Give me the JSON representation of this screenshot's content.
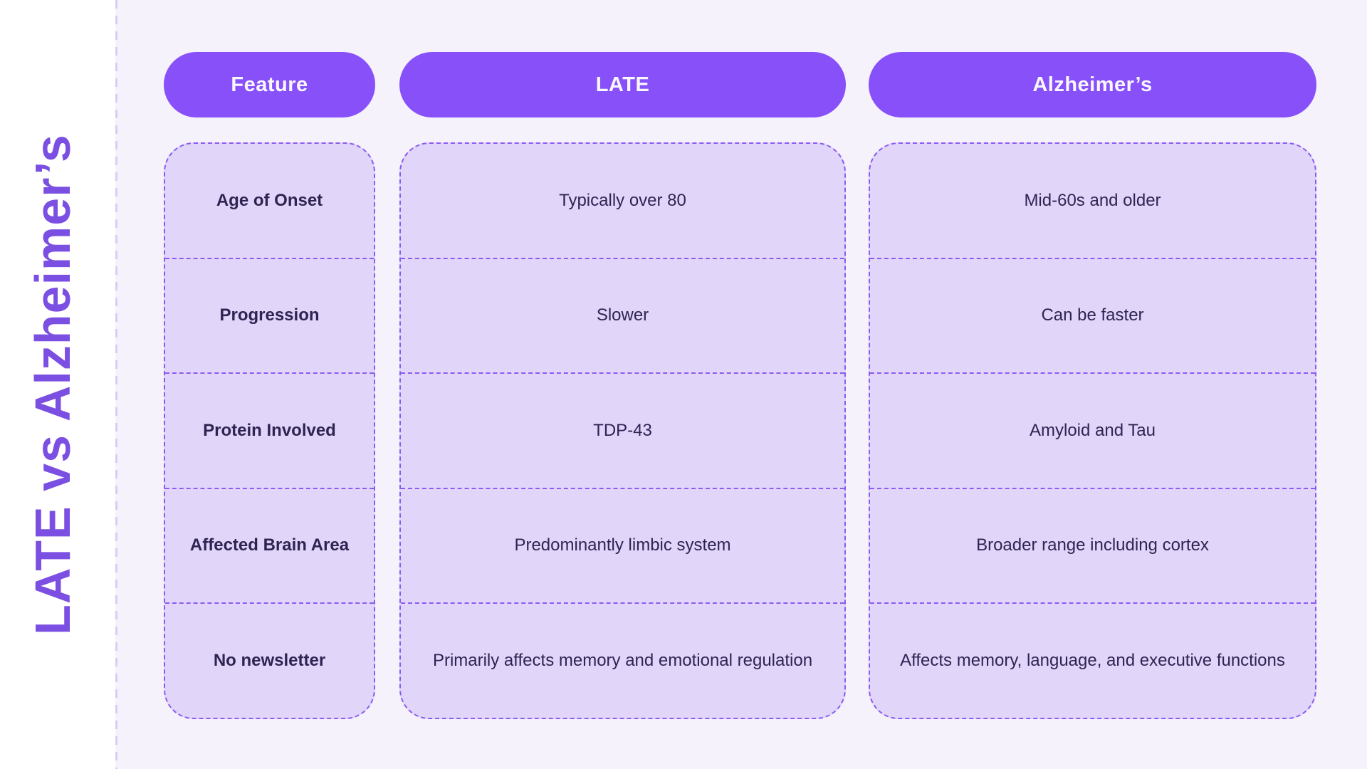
{
  "title": "LATE vs Alzheimer’s",
  "header": {
    "feature": "Feature",
    "late": "LATE",
    "alzheimers": "Alzheimer’s"
  },
  "chart_data": {
    "type": "table",
    "title": "LATE vs Alzheimer’s",
    "columns": [
      "Feature",
      "LATE",
      "Alzheimer’s"
    ],
    "rows": [
      [
        "Age of Onset",
        "Typically over 80",
        "Mid-60s and older"
      ],
      [
        "Progression",
        "Slower",
        "Can be faster"
      ],
      [
        "Protein Involved",
        "TDP-43",
        "Amyloid and Tau"
      ],
      [
        "Affected Brain Area",
        "Predominantly limbic system",
        "Broader range including cortex"
      ],
      [
        "No newsletter",
        "Primarily affects memory and emotional regulation",
        "Affects memory, language, and executive functions"
      ]
    ],
    "layout": {
      "header_style": "rounded purple pills",
      "body_style": "three rounded dashed-border columns with light purple fill",
      "side_title_rotation": "-90deg"
    }
  },
  "colors": {
    "accent_pill": "#8850F9",
    "side_title": "#7B4FE2",
    "cell_background": "#E2D5FA",
    "dashed_border": "#8A5CF0",
    "page_background": "#F5F2FC",
    "margin_background": "#FFFFFF",
    "text": "#2E2452",
    "header_text": "#FAF8FF"
  }
}
